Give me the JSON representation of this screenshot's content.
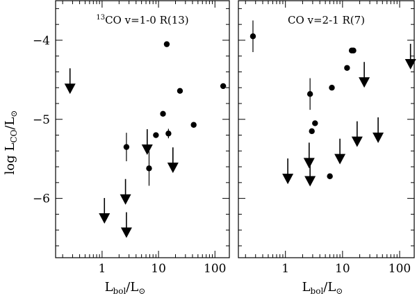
{
  "chart_data": [
    {
      "type": "scatter",
      "title": "13CO v=1-0 R(13)",
      "title_sup": "13",
      "title_main": "CO v=1-0 R(13)",
      "xlabel": "L_bol/L_sun",
      "ylabel": "log L_CO/L_sun",
      "xscale": "log",
      "xlim": [
        0.15,
        180
      ],
      "ylim": [
        -6.75,
        -3.5
      ],
      "xticks": [
        1,
        10,
        100
      ],
      "xtick_labels": [
        "1",
        "10",
        "100"
      ],
      "yticks": [
        -6,
        -5,
        -4
      ],
      "ytick_labels": [
        "-6",
        "-5",
        "-4"
      ],
      "detections": [
        {
          "x": 2.7,
          "y": -5.35,
          "err": 0.18
        },
        {
          "x": 6.8,
          "y": -5.62,
          "err": 0.22
        },
        {
          "x": 9.0,
          "y": -5.2,
          "err": 0
        },
        {
          "x": 12.0,
          "y": -4.93,
          "err": 0
        },
        {
          "x": 14.0,
          "y": -4.05,
          "err": 0
        },
        {
          "x": 15.0,
          "y": -5.18,
          "err": 0.06
        },
        {
          "x": 24.0,
          "y": -4.64,
          "err": 0
        },
        {
          "x": 42.0,
          "y": -5.07,
          "err": 0
        },
        {
          "x": 140.0,
          "y": -4.58,
          "err": 0
        }
      ],
      "upper_limits": [
        {
          "x": 0.27,
          "y": -4.68
        },
        {
          "x": 1.1,
          "y": -6.32
        },
        {
          "x": 2.6,
          "y": -6.08
        },
        {
          "x": 2.7,
          "y": -6.5
        },
        {
          "x": 6.3,
          "y": -5.45
        },
        {
          "x": 18.0,
          "y": -5.68
        }
      ]
    },
    {
      "type": "scatter",
      "title": "CO v=2-1 R(7)",
      "xlabel": "L_bol/L_sun",
      "ylabel": "",
      "xscale": "log",
      "xlim": [
        0.15,
        180
      ],
      "ylim": [
        -6.75,
        -3.5
      ],
      "xticks": [
        1,
        10,
        100
      ],
      "xtick_labels": [
        "1",
        "10",
        "100"
      ],
      "yticks": [
        -6,
        -5,
        -4
      ],
      "detections": [
        {
          "x": 0.27,
          "y": -3.95,
          "err": 0.2
        },
        {
          "x": 2.7,
          "y": -4.68,
          "err": 0.2
        },
        {
          "x": 2.9,
          "y": -5.15,
          "err": 0
        },
        {
          "x": 3.3,
          "y": -5.05,
          "err": 0
        },
        {
          "x": 6.0,
          "y": -5.72,
          "err": 0
        },
        {
          "x": 6.5,
          "y": -4.6,
          "err": 0
        },
        {
          "x": 12.0,
          "y": -4.35,
          "err": 0
        },
        {
          "x": 14.5,
          "y": -4.13,
          "err": 0
        },
        {
          "x": 15.5,
          "y": -4.13,
          "err": 0
        }
      ],
      "upper_limits": [
        {
          "x": 1.1,
          "y": -5.82
        },
        {
          "x": 2.6,
          "y": -5.62
        },
        {
          "x": 2.7,
          "y": -5.85
        },
        {
          "x": 9.0,
          "y": -5.57
        },
        {
          "x": 18.0,
          "y": -5.35
        },
        {
          "x": 24.0,
          "y": -4.6
        },
        {
          "x": 42.0,
          "y": -5.3
        },
        {
          "x": 155.0,
          "y": -4.37
        }
      ]
    }
  ],
  "labels": {
    "ylabel_prefix": "log L",
    "ylabel_sub": "CO",
    "ylabel_suffix": "/L",
    "sun_symbol": "⊙",
    "xlabel_main": "L",
    "xlabel_sub": "bol",
    "xlabel_suffix": "/L"
  }
}
